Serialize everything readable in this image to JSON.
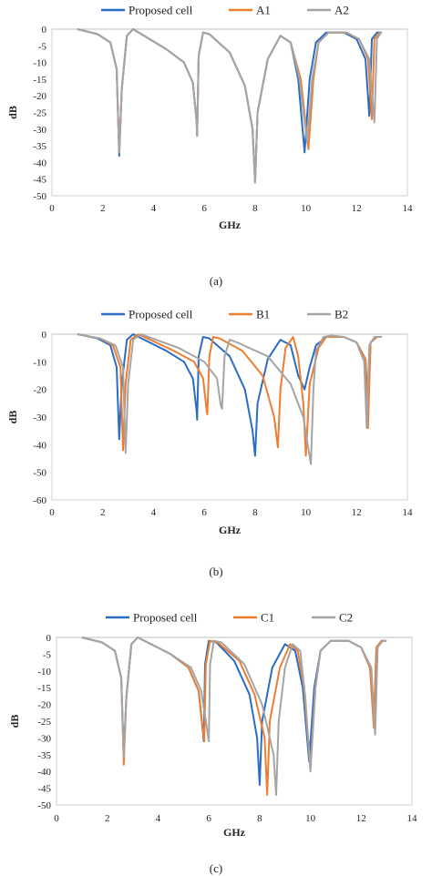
{
  "colors": {
    "blue": "#2b6cc4",
    "orange": "#ed7d31",
    "gray": "#a5a5a5"
  },
  "chart_data": [
    {
      "type": "line",
      "caption": "(a)",
      "xlabel": "GHz",
      "ylabel": "dB",
      "xlim": [
        0,
        14
      ],
      "ylim": [
        -50,
        0
      ],
      "xticks": [
        "0",
        "2",
        "4",
        "6",
        "8",
        "10",
        "12",
        "14"
      ],
      "yticks": [
        "0",
        "-5",
        "-10",
        "-15",
        "-20",
        "-25",
        "-30",
        "-35",
        "-40",
        "-45",
        "-50"
      ],
      "legend_position": "top",
      "series": [
        {
          "name": "Proposed cell",
          "color": "#2b6cc4",
          "x": [
            1.0,
            1.8,
            2.3,
            2.55,
            2.65,
            2.75,
            2.95,
            3.2,
            4.5,
            5.2,
            5.55,
            5.7,
            5.72,
            5.78,
            5.95,
            6.2,
            7.0,
            7.6,
            7.9,
            8.0,
            8.1,
            8.5,
            9.0,
            9.4,
            9.7,
            9.95,
            10.15,
            10.4,
            10.8,
            11.5,
            12.0,
            12.35,
            12.5,
            12.6,
            12.8,
            13.0
          ],
          "y": [
            0,
            -1.5,
            -4,
            -12,
            -38,
            -18,
            -2,
            0,
            -6,
            -10,
            -16,
            -28,
            -32,
            -8,
            -1,
            -1.5,
            -7,
            -17,
            -30,
            -46,
            -25,
            -9,
            -2,
            -4,
            -15,
            -37,
            -15,
            -4,
            -1,
            -1,
            -3,
            -9,
            -26,
            -3,
            -1,
            -1
          ]
        },
        {
          "name": "A1",
          "color": "#ed7d31",
          "x": [
            1.0,
            1.8,
            2.3,
            2.55,
            2.65,
            2.75,
            2.95,
            3.2,
            4.5,
            5.2,
            5.55,
            5.7,
            5.72,
            5.78,
            5.95,
            6.2,
            7.0,
            7.6,
            7.9,
            8.0,
            8.1,
            8.5,
            9.0,
            9.4,
            9.8,
            10.1,
            10.3,
            10.5,
            10.9,
            11.6,
            12.1,
            12.45,
            12.6,
            12.7,
            12.9,
            13.0
          ],
          "y": [
            0,
            -1.5,
            -4,
            -12,
            -37,
            -18,
            -2,
            0,
            -6,
            -10,
            -16,
            -28,
            -32,
            -8,
            -1,
            -1.5,
            -7,
            -17,
            -30,
            -46,
            -25,
            -9,
            -2,
            -4,
            -15,
            -36,
            -15,
            -4,
            -1,
            -1,
            -3,
            -9,
            -27,
            -3,
            -1,
            -1
          ]
        },
        {
          "name": "A2",
          "color": "#a5a5a5",
          "x": [
            1.0,
            1.8,
            2.3,
            2.55,
            2.65,
            2.75,
            2.95,
            3.2,
            4.5,
            5.2,
            5.55,
            5.7,
            5.72,
            5.78,
            5.95,
            6.2,
            7.0,
            7.6,
            7.9,
            8.0,
            8.1,
            8.5,
            9.0,
            9.4,
            9.75,
            10.05,
            10.25,
            10.5,
            10.9,
            11.6,
            12.1,
            12.5,
            12.7,
            12.8,
            12.95,
            13.0
          ],
          "y": [
            0,
            -1.5,
            -4,
            -12,
            -37,
            -18,
            -2,
            0,
            -6,
            -10,
            -16,
            -28,
            -32,
            -8,
            -1,
            -1.5,
            -7,
            -17,
            -30,
            -46,
            -25,
            -9,
            -2,
            -4,
            -15,
            -34,
            -15,
            -4,
            -1,
            -1,
            -3,
            -9,
            -28,
            -3,
            -1,
            -1
          ]
        }
      ]
    },
    {
      "type": "line",
      "caption": "(b)",
      "xlabel": "GHz",
      "ylabel": "dB",
      "xlim": [
        0,
        14
      ],
      "ylim": [
        -60,
        0
      ],
      "xticks": [
        "0",
        "2",
        "4",
        "6",
        "8",
        "10",
        "12",
        "14"
      ],
      "yticks": [
        "0",
        "-10",
        "-20",
        "-30",
        "-40",
        "-50",
        "-60"
      ],
      "legend_position": "top",
      "series": [
        {
          "name": "Proposed cell",
          "color": "#2b6cc4",
          "x": [
            1.0,
            1.8,
            2.3,
            2.55,
            2.65,
            2.75,
            2.95,
            3.2,
            4.5,
            5.2,
            5.55,
            5.7,
            5.72,
            5.78,
            5.95,
            6.2,
            7.0,
            7.6,
            7.9,
            8.0,
            8.1,
            8.5,
            9.0,
            9.4,
            9.7,
            9.95,
            10.15,
            10.4,
            10.8,
            11.5,
            12.0,
            12.35,
            12.45,
            12.55,
            12.8,
            13.0
          ],
          "y": [
            0,
            -1.5,
            -4,
            -12,
            -38,
            -18,
            -2,
            0,
            -6,
            -10,
            -16,
            -28,
            -31,
            -8,
            -1,
            -1.5,
            -8,
            -20,
            -35,
            -44,
            -25,
            -9,
            -2,
            -4,
            -15,
            -20,
            -12,
            -4,
            -1,
            -1,
            -3,
            -9,
            -26,
            -3,
            -1,
            -1
          ]
        },
        {
          "name": "B1",
          "color": "#ed7d31",
          "x": [
            1.0,
            1.9,
            2.4,
            2.7,
            2.8,
            2.9,
            3.1,
            3.4,
            4.8,
            5.6,
            5.95,
            6.1,
            6.12,
            6.2,
            6.35,
            6.6,
            7.5,
            8.3,
            8.75,
            8.9,
            9.0,
            9.2,
            9.5,
            9.7,
            9.9,
            10.0,
            10.15,
            10.5,
            10.8,
            11.5,
            12.0,
            12.35,
            12.45,
            12.55,
            12.8,
            13.0
          ],
          "y": [
            0,
            -1.5,
            -4,
            -12,
            -42,
            -18,
            -2,
            0,
            -6,
            -10,
            -16,
            -28,
            -29,
            -8,
            -1,
            -1.5,
            -6,
            -15,
            -30,
            -41,
            -20,
            -5,
            -1,
            -8,
            -25,
            -44,
            -18,
            -5,
            -1,
            -1,
            -3,
            -9,
            -34,
            -3,
            -1,
            -1
          ]
        },
        {
          "name": "B2",
          "color": "#a5a5a5",
          "x": [
            1.0,
            1.9,
            2.5,
            2.8,
            2.9,
            3.0,
            3.2,
            3.5,
            5.0,
            6.0,
            6.5,
            6.65,
            6.7,
            6.8,
            7.0,
            7.3,
            8.5,
            9.4,
            9.9,
            10.2,
            10.3,
            10.4,
            10.7,
            11.0,
            11.5,
            12.0,
            12.3,
            12.4,
            12.5,
            12.7,
            12.9,
            13.0
          ],
          "y": [
            0,
            -1.5,
            -4,
            -12,
            -43,
            -18,
            -2,
            0,
            -5,
            -10,
            -16,
            -26,
            -27,
            -8,
            -2,
            -3,
            -8,
            -18,
            -30,
            -47,
            -20,
            -6,
            -1,
            -0.5,
            -1,
            -3,
            -10,
            -34,
            -4,
            -1,
            -1,
            -1
          ]
        }
      ]
    },
    {
      "type": "line",
      "caption": "(c)",
      "xlabel": "GHz",
      "ylabel": "dB",
      "xlim": [
        0,
        14
      ],
      "ylim": [
        -50,
        0
      ],
      "xticks": [
        "0",
        "2",
        "4",
        "6",
        "8",
        "10",
        "12",
        "14"
      ],
      "yticks": [
        "0",
        "-5",
        "-10",
        "-15",
        "-20",
        "-25",
        "-30",
        "-35",
        "-40",
        "-45",
        "-50"
      ],
      "legend_position": "top",
      "series": [
        {
          "name": "Proposed cell",
          "color": "#2b6cc4",
          "x": [
            1.0,
            1.8,
            2.3,
            2.55,
            2.65,
            2.75,
            2.95,
            3.2,
            4.5,
            5.2,
            5.6,
            5.75,
            5.8,
            5.85,
            6.0,
            6.3,
            7.0,
            7.6,
            7.9,
            8.0,
            8.1,
            8.5,
            9.0,
            9.4,
            9.7,
            9.95,
            10.15,
            10.4,
            10.8,
            11.5,
            12.0,
            12.35,
            12.5,
            12.6,
            12.8,
            13.0
          ],
          "y": [
            0,
            -1.5,
            -4,
            -12,
            -35,
            -18,
            -2,
            0,
            -5,
            -9,
            -16,
            -27,
            -31,
            -8,
            -1,
            -1.5,
            -7,
            -17,
            -30,
            -44,
            -25,
            -9,
            -2,
            -4,
            -15,
            -37,
            -15,
            -4,
            -1,
            -1,
            -3,
            -9,
            -26,
            -3,
            -1,
            -1
          ]
        },
        {
          "name": "C1",
          "color": "#ed7d31",
          "x": [
            1.0,
            1.8,
            2.3,
            2.55,
            2.65,
            2.75,
            2.95,
            3.2,
            4.5,
            5.2,
            5.6,
            5.75,
            5.82,
            5.88,
            6.05,
            6.35,
            7.2,
            7.8,
            8.2,
            8.3,
            8.4,
            8.8,
            9.2,
            9.5,
            9.75,
            10.0,
            10.2,
            10.4,
            10.8,
            11.5,
            12.0,
            12.35,
            12.5,
            12.6,
            12.8,
            13.0
          ],
          "y": [
            0,
            -1.5,
            -4,
            -12,
            -38,
            -18,
            -2,
            0,
            -5,
            -9,
            -16,
            -27,
            -31,
            -8,
            -1,
            -1.5,
            -7,
            -17,
            -30,
            -47,
            -25,
            -9,
            -2,
            -4,
            -15,
            -39,
            -15,
            -4,
            -1,
            -1,
            -3,
            -9,
            -27,
            -3,
            -1,
            -1
          ]
        },
        {
          "name": "C2",
          "color": "#a5a5a5",
          "x": [
            1.0,
            1.8,
            2.3,
            2.55,
            2.65,
            2.75,
            2.95,
            3.2,
            4.5,
            5.3,
            5.7,
            5.9,
            6.0,
            6.05,
            6.2,
            6.5,
            7.4,
            8.1,
            8.55,
            8.65,
            8.75,
            9.0,
            9.3,
            9.6,
            9.8,
            10.0,
            10.2,
            10.4,
            10.8,
            11.5,
            12.0,
            12.4,
            12.55,
            12.65,
            12.85,
            13.0
          ],
          "y": [
            0,
            -1.5,
            -4,
            -12,
            -36,
            -18,
            -2,
            0,
            -5,
            -9,
            -16,
            -26,
            -31,
            -8,
            -1,
            -1.5,
            -8,
            -20,
            -35,
            -47,
            -25,
            -9,
            -2,
            -4,
            -18,
            -40,
            -15,
            -4,
            -1,
            -1,
            -3,
            -9,
            -29,
            -3,
            -1,
            -1
          ]
        }
      ]
    }
  ]
}
